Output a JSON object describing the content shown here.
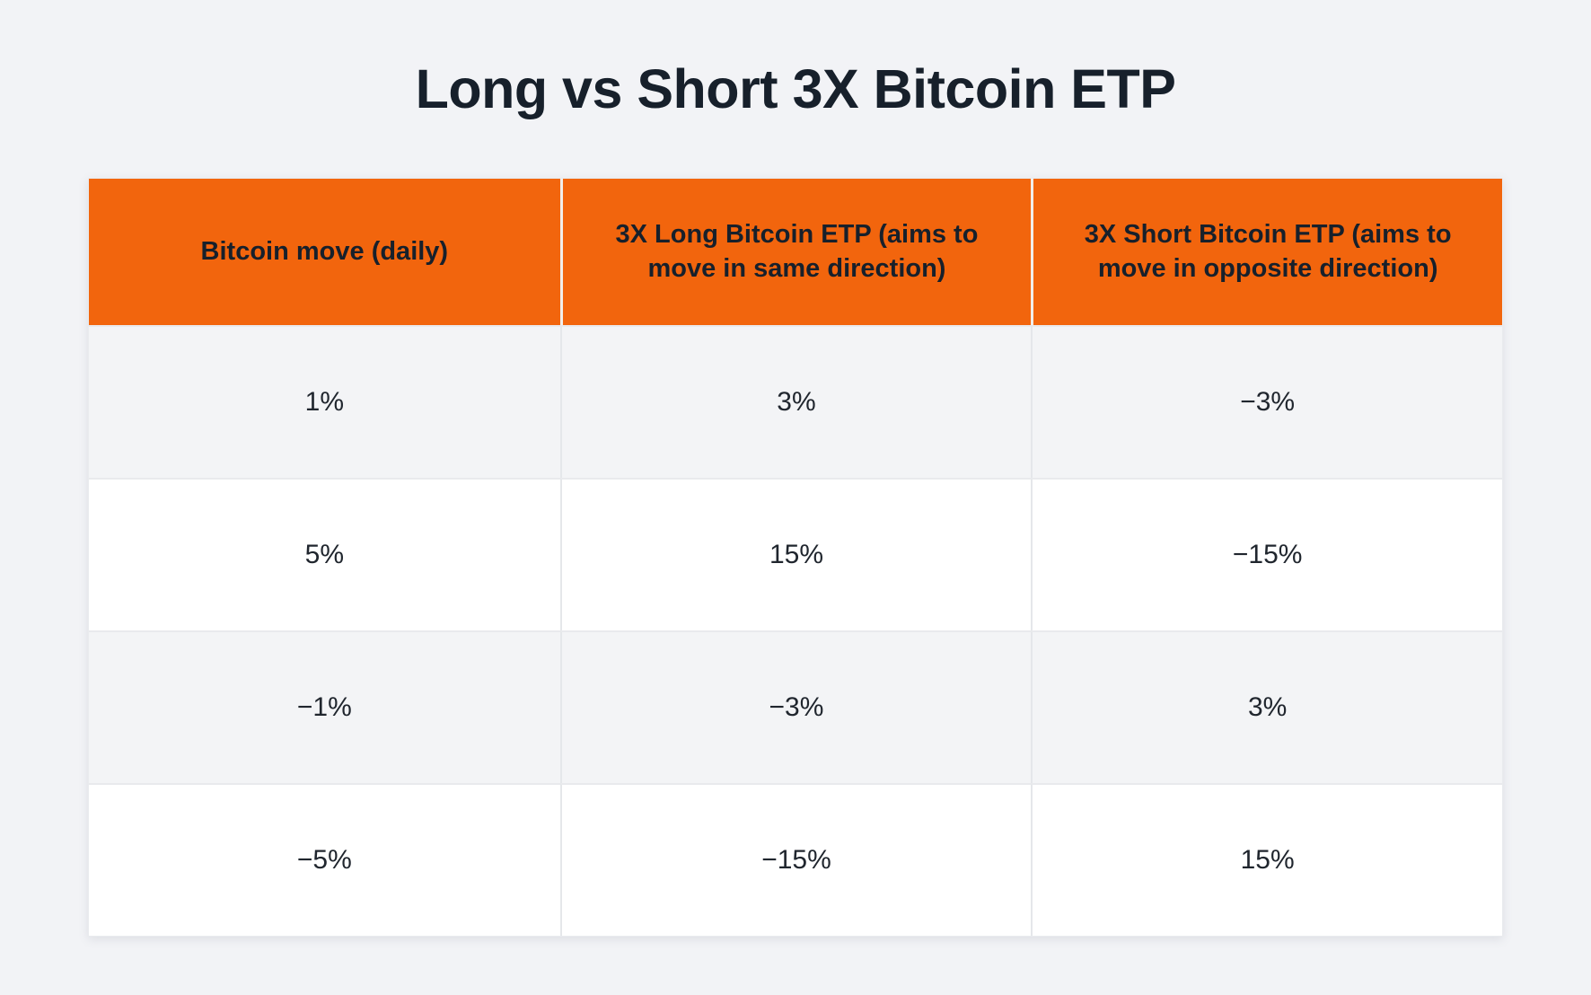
{
  "page": {
    "background": "#F2F3F6"
  },
  "header": {
    "title": "Long vs Short 3X Bitcoin ETP"
  },
  "colors": {
    "accent_orange": "#F2650D",
    "title_text": "#17202B",
    "header_text": "#17202B",
    "cell_text": "#20262E",
    "row_alt_bg": "#F3F4F6",
    "row_bg": "#FFFFFF",
    "grid_border": "#E7E9EC",
    "page_bg": "#F2F3F6"
  },
  "chart_data": {
    "type": "table",
    "title": "Long vs Short 3X Bitcoin ETP",
    "columns": [
      "Bitcoin move (daily)",
      "3X Long Bitcoin ETP (aims to move in same direction)",
      "3X Short Bitcoin ETP (aims to move in opposite direction)"
    ],
    "rows": [
      [
        "1%",
        "3%",
        "−3%"
      ],
      [
        "5%",
        "15%",
        "−15%"
      ],
      [
        "−1%",
        "−3%",
        "3%"
      ],
      [
        "−5%",
        "−15%",
        "15%"
      ]
    ],
    "layout": {
      "header_bg": "#F2650D",
      "zebra_row_colors": [
        "#F3F4F6",
        "#FFFFFF"
      ],
      "grid": "light-gray-borders",
      "title_position": "top-center"
    }
  }
}
